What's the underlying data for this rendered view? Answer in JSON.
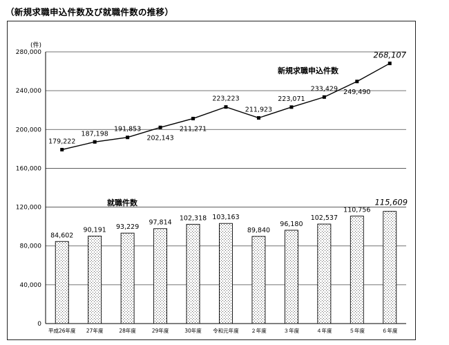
{
  "page": {
    "title": "（新規求職申込件数及び就職件数の推移）"
  },
  "chart_data": {
    "type": "bar+line",
    "unit_label": "(件)",
    "y_ticks": [
      0,
      40000,
      80000,
      120000,
      160000,
      200000,
      240000,
      280000
    ],
    "y_tick_labels": [
      "0",
      "40,000",
      "80,000",
      "120,000",
      "160,000",
      "200,000",
      "240,000",
      "280,000"
    ],
    "ylim": [
      0,
      280000
    ],
    "grid": true,
    "categories": [
      "平成26年度",
      "27年度",
      "28年度",
      "29年度",
      "30年度",
      "令和元年度",
      "２年度",
      "３年度",
      "４年度",
      "５年度",
      "６年度"
    ],
    "series": [
      {
        "name": "新規求職申込件数",
        "kind": "line",
        "values": [
          179222,
          187198,
          191853,
          202143,
          211271,
          223223,
          211923,
          223071,
          233429,
          249490,
          268107
        ],
        "labels": [
          "179,222",
          "187,198",
          "191,853",
          "202,143",
          "211,271",
          "223,223",
          "211,923",
          "223,071",
          "233,429",
          "249,490",
          "268,107"
        ]
      },
      {
        "name": "就職件数",
        "kind": "bar",
        "values": [
          84602,
          90191,
          93229,
          97814,
          102318,
          103163,
          89840,
          96180,
          102537,
          110756,
          115609
        ],
        "labels": [
          "84,602",
          "90,191",
          "93,229",
          "97,814",
          "102,318",
          "103,163",
          "89,840",
          "96,180",
          "102,537",
          "110,756",
          "115,609"
        ]
      }
    ]
  }
}
